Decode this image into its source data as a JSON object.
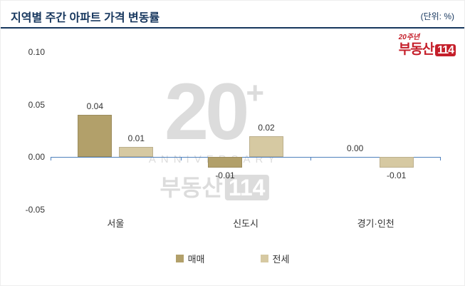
{
  "header": {
    "title": "지역별 주간 아파트 가격 변동률",
    "unit_label": "(단위: %)"
  },
  "logo": {
    "anniversary": "20주년",
    "brand": "부동산",
    "brand_number": "114"
  },
  "watermark": {
    "big": "20",
    "plus": "+",
    "anniversary": "ANNIVERSARY",
    "brand": "부동산",
    "brand_number": "114"
  },
  "chart_data": {
    "type": "bar",
    "title": "지역별 주간 아파트 가격 변동률",
    "unit": "%",
    "categories": [
      "서울",
      "신도시",
      "경기·인천"
    ],
    "series": [
      {
        "name": "매매",
        "color": "#b2a06a",
        "values": [
          0.04,
          -0.01,
          0.0
        ]
      },
      {
        "name": "전세",
        "color": "#d6c9a2",
        "values": [
          0.01,
          0.02,
          -0.01
        ]
      }
    ],
    "ylim": [
      -0.05,
      0.1
    ],
    "yticks": [
      0.1,
      0.05,
      0.0,
      -0.05
    ],
    "grid": false,
    "legend_position": "bottom",
    "axis_color": "#4f81bd"
  }
}
